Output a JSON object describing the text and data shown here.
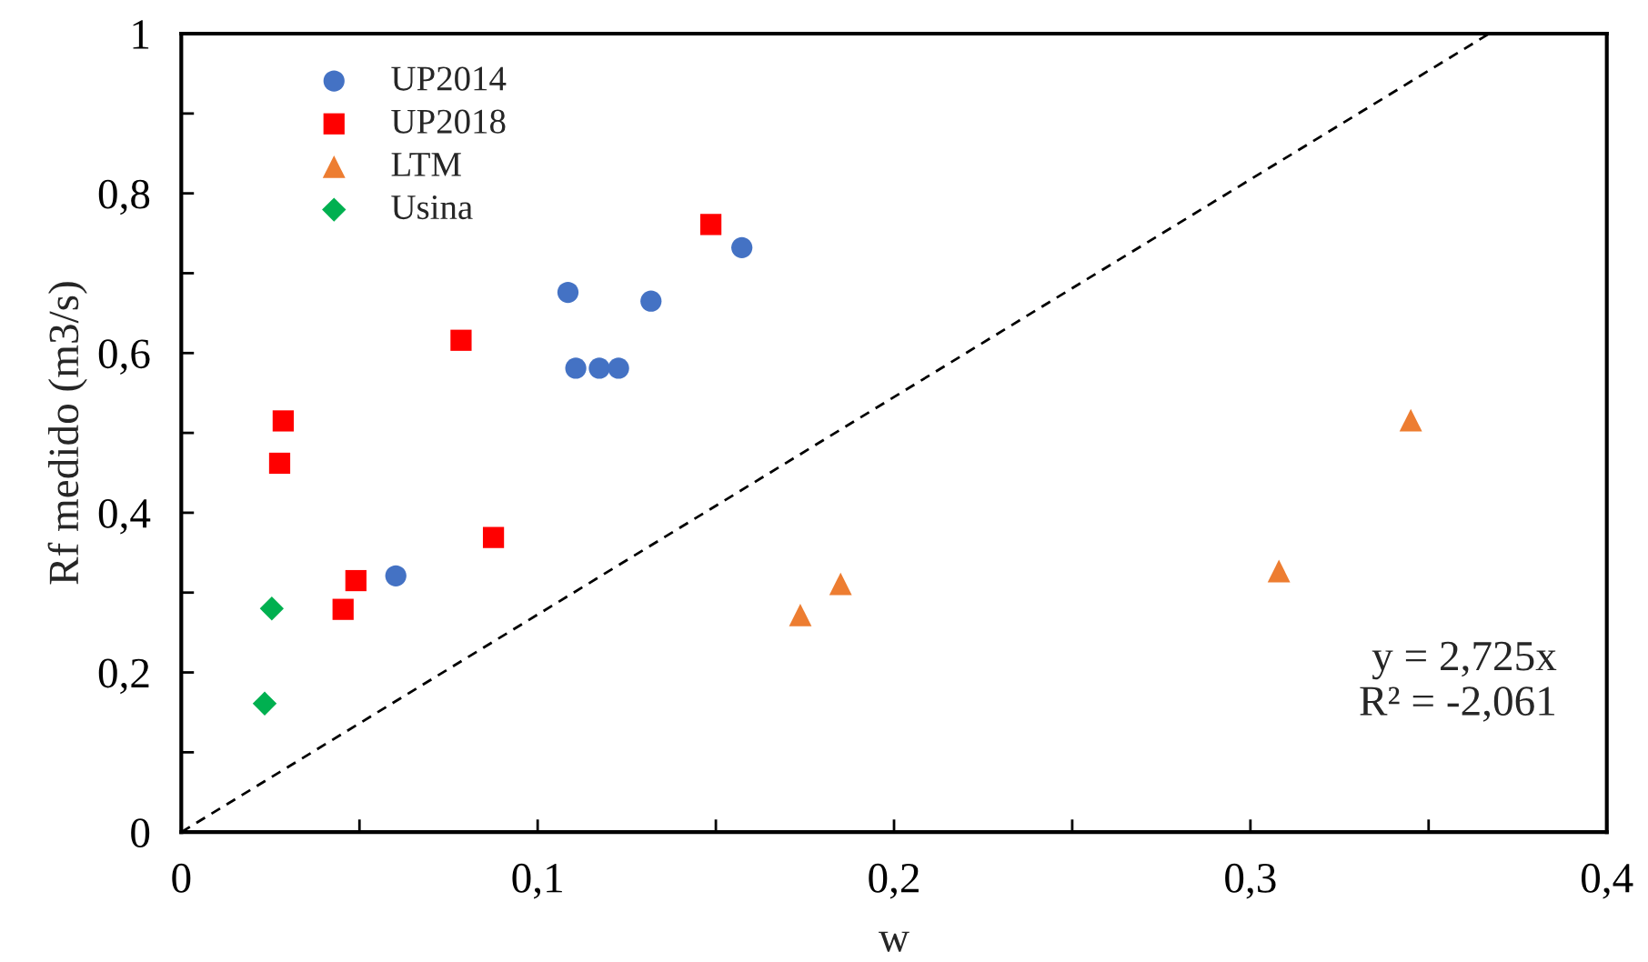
{
  "chart_data": {
    "type": "scatter",
    "xlabel": "w",
    "ylabel": "Rf medido (m3/s)",
    "xlim": [
      0,
      0.4
    ],
    "ylim": [
      0,
      1
    ],
    "xticks": [
      0,
      {
        "value": 0.05,
        "label": null
      },
      {
        "value": 0.1,
        "label": "0,1"
      },
      {
        "value": 0.15,
        "label": null
      },
      {
        "value": 0.2,
        "label": "0,2"
      },
      {
        "value": 0.25,
        "label": null
      },
      {
        "value": 0.3,
        "label": "0,3"
      },
      {
        "value": 0.35,
        "label": null
      },
      {
        "value": 0.4,
        "label": "0,4"
      }
    ],
    "yticks": [
      0,
      {
        "value": 0.1,
        "label": null
      },
      {
        "value": 0.2,
        "label": "0,2"
      },
      {
        "value": 0.3,
        "label": null
      },
      {
        "value": 0.4,
        "label": "0,4"
      },
      {
        "value": 0.5,
        "label": null
      },
      {
        "value": 0.6,
        "label": "0,6"
      },
      {
        "value": 0.7,
        "label": null
      },
      {
        "value": 0.8,
        "label": "0,8"
      },
      {
        "value": 0.9,
        "label": null
      },
      1
    ],
    "grid": false,
    "legend": "top left",
    "series": [
      {
        "name": "UP2014",
        "color": "#4472c4",
        "marker": "circle",
        "x": [
          0.0602,
          0.1085,
          0.1107,
          0.1173,
          0.1227,
          0.1318,
          0.1573
        ],
        "values": [
          0.321,
          0.676,
          0.581,
          0.581,
          0.581,
          0.665,
          0.732
        ]
      },
      {
        "name": "UP2018",
        "color": "#ff0000",
        "marker": "square",
        "x": [
          0.0286,
          0.0276,
          0.0454,
          0.049,
          0.0785,
          0.0876,
          0.1486
        ],
        "values": [
          0.515,
          0.462,
          0.279,
          0.315,
          0.616,
          0.369,
          0.761
        ]
      },
      {
        "name": "LTM",
        "color": "#ed7d31",
        "marker": "triangle",
        "x": [
          0.1737,
          0.185,
          0.308,
          0.345
        ],
        "values": [
          0.272,
          0.311,
          0.327,
          0.516
        ]
      },
      {
        "name": "Usina",
        "color": "#00b050",
        "marker": "diamond",
        "x": [
          0.0254,
          0.0234
        ],
        "values": [
          0.28,
          0.161
        ]
      },
      {
        "type": "line",
        "color": "#000000",
        "line_style": "dashed",
        "marker": "none",
        "x": [
          0,
          0.367
        ],
        "values": [
          0,
          1
        ]
      }
    ],
    "annotations": [
      "y = 2,725x\nR² = -2,061"
    ]
  }
}
